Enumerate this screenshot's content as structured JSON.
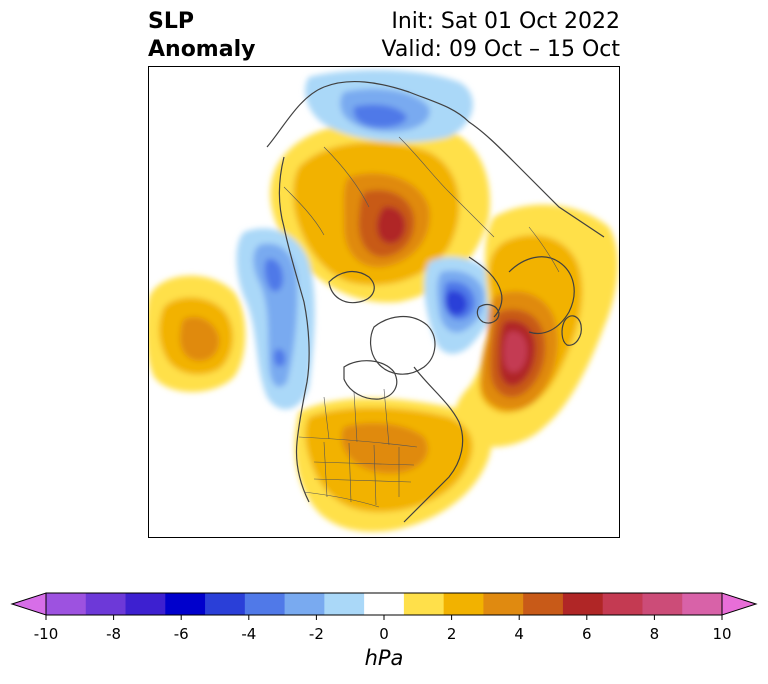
{
  "title": {
    "left_line1": "SLP",
    "left_line2": "Anomaly",
    "right_line1": "Init: Sat 01 Oct 2022",
    "right_line2": "Valid: 09 Oct – 15 Oct"
  },
  "map": {
    "projection": "north-polar-stereographic",
    "field": "sea level pressure anomaly",
    "colors": {
      "land_borders": "#404040",
      "background": "#ffffff"
    }
  },
  "colorbar": {
    "unit": "hPa",
    "ticks": [
      "-10",
      "-8",
      "-6",
      "-4",
      "-2",
      "0",
      "2",
      "4",
      "6",
      "8",
      "10"
    ],
    "levels": [
      -10,
      -9,
      -8,
      -7,
      -6,
      -5,
      -4,
      -3,
      -2,
      -1,
      1,
      2,
      3,
      4,
      5,
      6,
      7,
      8,
      9,
      10
    ],
    "colors": [
      "#d76ee8",
      "#9d52e0",
      "#6d39d8",
      "#3d20d0",
      "#0000cc",
      "#2a3fd8",
      "#5079e8",
      "#79aaf0",
      "#aad8f8",
      "#ffffff",
      "#ffe04a",
      "#f2b200",
      "#e08a10",
      "#c85a18",
      "#b02626",
      "#c43a52",
      "#cc4c78",
      "#d862a8",
      "#e86ed8"
    ],
    "extend": "both"
  }
}
